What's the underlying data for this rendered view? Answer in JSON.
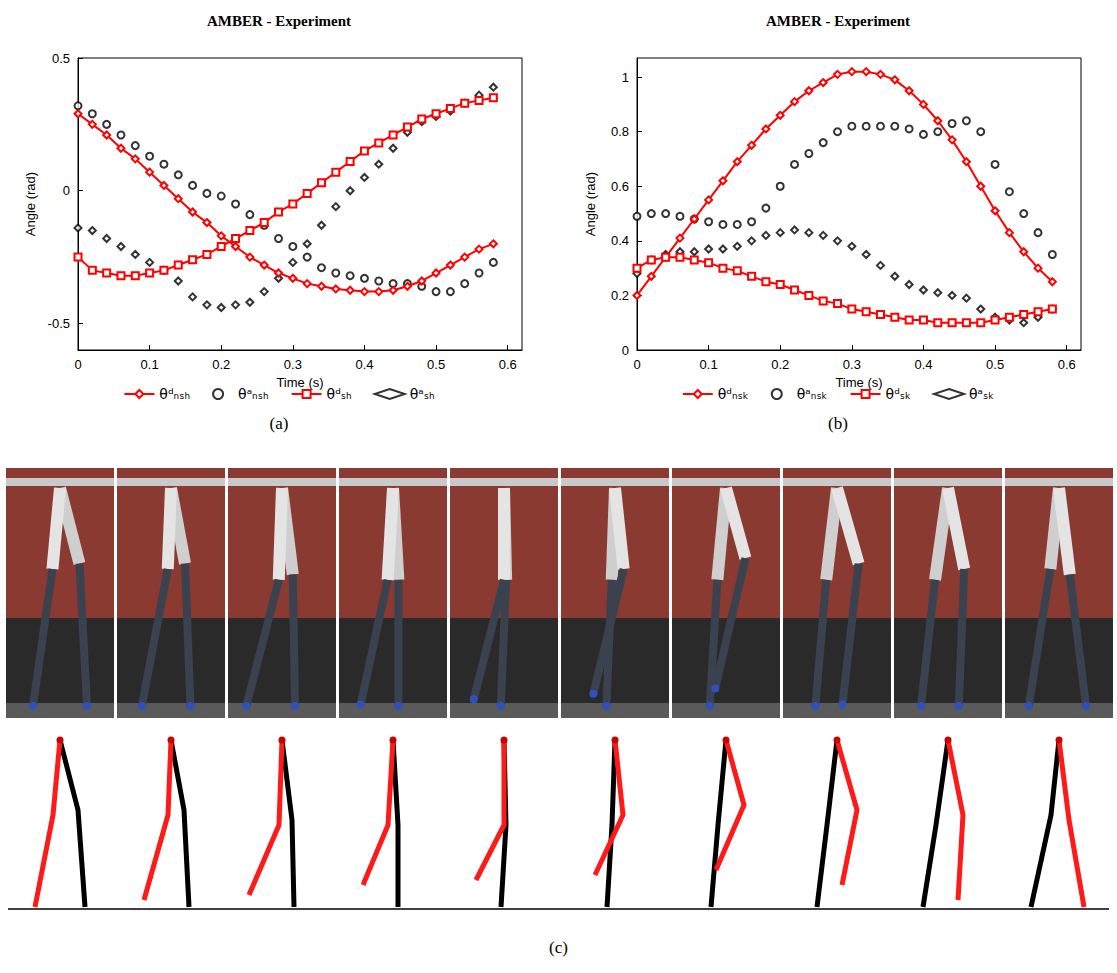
{
  "chart_data": [
    {
      "type": "line",
      "title": "AMBER - Experiment",
      "panel": "(a)",
      "x_label": "Time (s)",
      "y_label": "Angle (rad)",
      "x": [
        0,
        0.02,
        0.04,
        0.06,
        0.08,
        0.1,
        0.12,
        0.14,
        0.16,
        0.18,
        0.2,
        0.22,
        0.24,
        0.26,
        0.28,
        0.3,
        0.32,
        0.34,
        0.36,
        0.38,
        0.4,
        0.42,
        0.44,
        0.46,
        0.48,
        0.5,
        0.52,
        0.54,
        0.56,
        0.58
      ],
      "xlim": [
        0,
        0.62
      ],
      "xticks": [
        0,
        0.1,
        0.2,
        0.3,
        0.4,
        0.5,
        0.6
      ],
      "ylim": [
        -0.6,
        0.5
      ],
      "yticks": [
        -0.5,
        0,
        0.5
      ],
      "grid": false,
      "legend": "bottom",
      "series": [
        {
          "name": "θᵈₙₛₕ",
          "type": "line",
          "color": "#ff0000",
          "marker": "diamond",
          "line_style": "solid",
          "values": [
            0.29,
            0.25,
            0.21,
            0.16,
            0.12,
            0.07,
            0.02,
            -0.03,
            -0.08,
            -0.12,
            -0.17,
            -0.21,
            -0.25,
            -0.28,
            -0.31,
            -0.33,
            -0.35,
            -0.36,
            -0.37,
            -0.375,
            -0.38,
            -0.38,
            -0.375,
            -0.36,
            -0.34,
            -0.31,
            -0.28,
            -0.25,
            -0.22,
            -0.2
          ]
        },
        {
          "name": "θᵃₙₛₕ",
          "type": "scatter",
          "color": "#000000",
          "marker": "circle",
          "values": [
            0.32,
            0.29,
            0.25,
            0.21,
            0.17,
            0.13,
            0.1,
            0.06,
            0.02,
            -0.01,
            -0.02,
            -0.05,
            -0.09,
            -0.13,
            -0.18,
            -0.21,
            -0.25,
            -0.29,
            -0.31,
            -0.32,
            -0.33,
            -0.34,
            -0.35,
            -0.35,
            -0.36,
            -0.38,
            -0.38,
            -0.35,
            -0.31,
            -0.27
          ]
        },
        {
          "name": "θᵈₛₕ",
          "type": "line",
          "color": "#ff0000",
          "marker": "square",
          "line_style": "solid",
          "values": [
            -0.25,
            -0.3,
            -0.31,
            -0.32,
            -0.32,
            -0.31,
            -0.3,
            -0.28,
            -0.26,
            -0.24,
            -0.21,
            -0.18,
            -0.15,
            -0.12,
            -0.08,
            -0.05,
            -0.01,
            0.03,
            0.07,
            0.11,
            0.15,
            0.18,
            0.21,
            0.24,
            0.27,
            0.29,
            0.31,
            0.33,
            0.34,
            0.35
          ]
        },
        {
          "name": "θᵃₛₕ",
          "type": "scatter",
          "color": "#000000",
          "marker": "diamond",
          "values": [
            -0.14,
            -0.15,
            -0.18,
            -0.21,
            -0.24,
            -0.27,
            -0.3,
            -0.34,
            -0.4,
            -0.43,
            -0.44,
            -0.43,
            -0.42,
            -0.38,
            -0.33,
            -0.27,
            -0.2,
            -0.13,
            -0.06,
            0,
            0.05,
            0.1,
            0.16,
            0.22,
            0.26,
            0.28,
            0.3,
            0.33,
            0.36,
            0.39
          ]
        }
      ]
    },
    {
      "type": "line",
      "title": "AMBER - Experiment",
      "panel": "(b)",
      "x_label": "Time (s)",
      "y_label": "Angle (rad)",
      "x": [
        0,
        0.02,
        0.04,
        0.06,
        0.08,
        0.1,
        0.12,
        0.14,
        0.16,
        0.18,
        0.2,
        0.22,
        0.24,
        0.26,
        0.28,
        0.3,
        0.32,
        0.34,
        0.36,
        0.38,
        0.4,
        0.42,
        0.44,
        0.46,
        0.48,
        0.5,
        0.52,
        0.54,
        0.56,
        0.58
      ],
      "xlim": [
        0,
        0.62
      ],
      "xticks": [
        0,
        0.1,
        0.2,
        0.3,
        0.4,
        0.5,
        0.6
      ],
      "ylim": [
        0,
        1.07
      ],
      "yticks": [
        0,
        0.2,
        0.4,
        0.6,
        0.8,
        1
      ],
      "grid": false,
      "legend": "bottom",
      "series": [
        {
          "name": "θᵈₙₛₖ",
          "type": "line",
          "color": "#ff0000",
          "marker": "diamond",
          "line_style": "solid",
          "values": [
            0.2,
            0.27,
            0.34,
            0.41,
            0.48,
            0.55,
            0.62,
            0.69,
            0.75,
            0.81,
            0.86,
            0.91,
            0.95,
            0.98,
            1.01,
            1.02,
            1.02,
            1.01,
            0.99,
            0.95,
            0.9,
            0.84,
            0.77,
            0.69,
            0.6,
            0.51,
            0.43,
            0.36,
            0.3,
            0.25
          ]
        },
        {
          "name": "θᵃₙₛₖ",
          "type": "scatter",
          "color": "#000000",
          "marker": "circle",
          "values": [
            0.49,
            0.5,
            0.5,
            0.49,
            0.48,
            0.47,
            0.46,
            0.46,
            0.47,
            0.52,
            0.6,
            0.68,
            0.72,
            0.76,
            0.8,
            0.82,
            0.82,
            0.82,
            0.82,
            0.81,
            0.79,
            0.8,
            0.83,
            0.84,
            0.8,
            0.68,
            0.58,
            0.5,
            0.43,
            0.35
          ]
        },
        {
          "name": "θᵈₛₖ",
          "type": "line",
          "color": "#ff0000",
          "marker": "square",
          "line_style": "solid",
          "values": [
            0.3,
            0.33,
            0.34,
            0.34,
            0.33,
            0.32,
            0.3,
            0.29,
            0.27,
            0.25,
            0.24,
            0.22,
            0.2,
            0.18,
            0.17,
            0.15,
            0.14,
            0.13,
            0.12,
            0.11,
            0.11,
            0.1,
            0.1,
            0.1,
            0.1,
            0.11,
            0.12,
            0.13,
            0.14,
            0.15
          ]
        },
        {
          "name": "θᵃₛₖ",
          "type": "scatter",
          "color": "#000000",
          "marker": "diamond",
          "values": [
            0.28,
            0.33,
            0.35,
            0.36,
            0.36,
            0.37,
            0.37,
            0.38,
            0.4,
            0.42,
            0.43,
            0.44,
            0.43,
            0.42,
            0.4,
            0.38,
            0.35,
            0.31,
            0.27,
            0.24,
            0.22,
            0.21,
            0.2,
            0.19,
            0.15,
            0.12,
            0.11,
            0.1,
            0.12,
            0.15
          ]
        }
      ]
    }
  ],
  "panel_c": {
    "label": "(c)"
  }
}
